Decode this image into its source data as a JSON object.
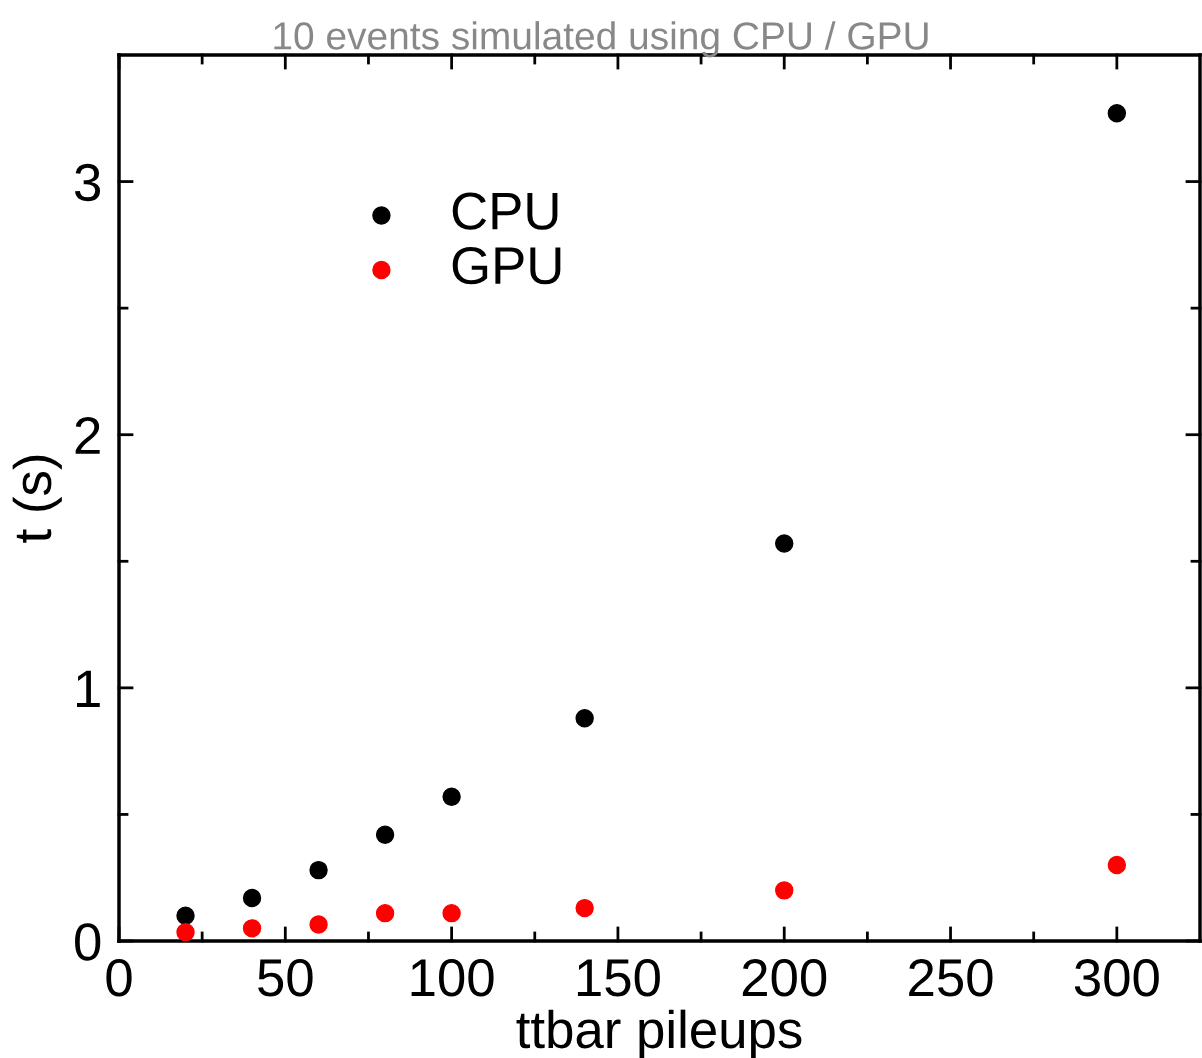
{
  "chart_data": {
    "type": "scatter",
    "title": "10 events simulated using CPU / GPU",
    "xlabel": "ttbar pileups",
    "ylabel": "t (s)",
    "x": [
      20,
      40,
      60,
      80,
      100,
      140,
      200,
      300
    ],
    "series": [
      {
        "name": "CPU",
        "color": "#000000",
        "values": [
          0.1,
          0.17,
          0.28,
          0.42,
          0.57,
          0.88,
          1.57,
          3.27
        ]
      },
      {
        "name": "GPU",
        "color": "#ff0000",
        "values": [
          0.035,
          0.05,
          0.065,
          0.11,
          0.11,
          0.13,
          0.2,
          0.3
        ]
      }
    ],
    "xlim": [
      0,
      325
    ],
    "ylim": [
      0,
      3.5
    ],
    "xticks": [
      0,
      {
        "value": 25,
        "label": null
      },
      50,
      {
        "value": 75,
        "label": null
      },
      100,
      {
        "value": 125,
        "label": null
      },
      150,
      {
        "value": 175,
        "label": null
      },
      200,
      {
        "value": 225,
        "label": null
      },
      250,
      {
        "value": 275,
        "label": null
      },
      300
    ],
    "yticks": [
      0,
      {
        "value": 0.5,
        "label": null
      },
      1,
      {
        "value": 1.5,
        "label": null
      },
      2,
      {
        "value": 2.5,
        "label": null
      },
      3
    ],
    "marker": "circle",
    "legend": "top left",
    "grid": false
  }
}
